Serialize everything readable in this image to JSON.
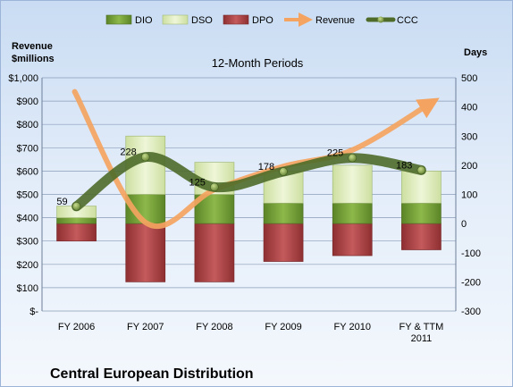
{
  "chart_data": {
    "type": "bar",
    "subtitle": "12-Month Periods",
    "footer": "Central European Distribution",
    "left_axis_title": [
      "Revenue",
      "$millions"
    ],
    "right_axis_title": "Days",
    "categories": [
      [
        "FY 2006"
      ],
      [
        "FY 2007"
      ],
      [
        "FY 2008"
      ],
      [
        "FY 2009"
      ],
      [
        "FY 2010"
      ],
      [
        "FY & TTM",
        "2011"
      ]
    ],
    "left_axis": {
      "min": 0,
      "max": 1000,
      "step": 100,
      "tick_labels": [
        "$-",
        "$100",
        "$200",
        "$300",
        "$400",
        "$500",
        "$600",
        "$700",
        "$800",
        "$900",
        "$1,000"
      ]
    },
    "right_axis": {
      "min": -300,
      "max": 500,
      "step": 100,
      "tick_labels": [
        "-300",
        "-200",
        "-100",
        "0",
        "100",
        "200",
        "300",
        "400",
        "500"
      ]
    },
    "series": [
      {
        "name": "DIO",
        "kind": "bar",
        "axis": "right",
        "values": [
          20,
          100,
          100,
          70,
          70,
          70
        ],
        "color": "#76a33a"
      },
      {
        "name": "DSO",
        "kind": "bar",
        "axis": "right",
        "values": [
          40,
          200,
          110,
          110,
          130,
          110
        ],
        "color": "#e3efc4"
      },
      {
        "name": "DPO",
        "kind": "bar",
        "axis": "right",
        "values": [
          -60,
          -200,
          -200,
          -130,
          -110,
          -90
        ],
        "color": "#b5494b"
      },
      {
        "name": "Revenue",
        "kind": "line",
        "axis": "left",
        "values": [
          940,
          380,
          520,
          620,
          690,
          890
        ],
        "color": "#f4a460"
      },
      {
        "name": "CCC",
        "kind": "line",
        "axis": "right",
        "values": [
          59,
          228,
          125,
          178,
          225,
          183
        ],
        "labels": [
          "59",
          "228",
          "125",
          "178",
          "225",
          "183"
        ],
        "color": "#4e6b2a"
      }
    ],
    "legend_position": "top",
    "grid": true
  }
}
